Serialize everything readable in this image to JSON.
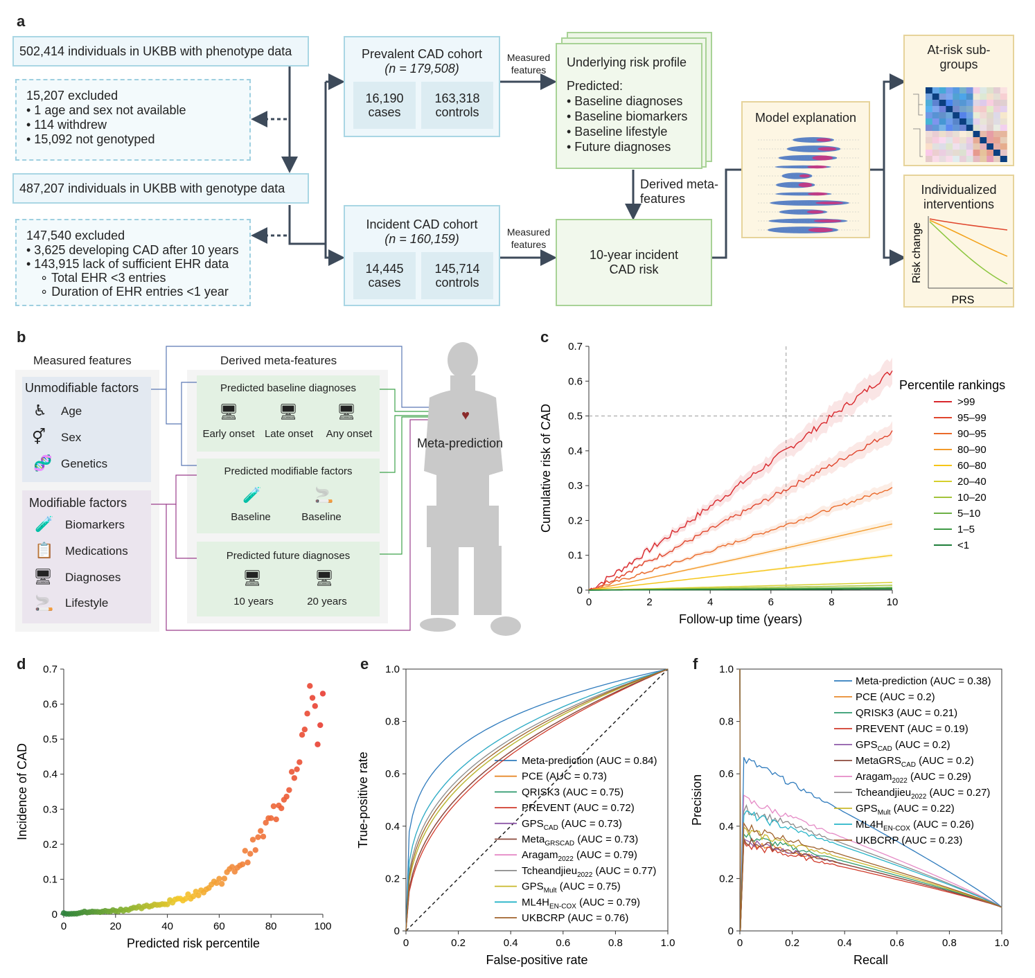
{
  "panels": {
    "a": "a",
    "b": "b",
    "c": "c",
    "d": "d",
    "e": "e",
    "f": "f"
  },
  "a": {
    "pheno": "502,414 individuals in UKBB with phenotype data",
    "excl1": {
      "title": "15,207 excluded",
      "items": [
        "• 1 age and sex not available",
        "• 114 withdrew",
        "• 15,092 not genotyped"
      ]
    },
    "geno": "487,207 individuals in UKBB with genotype data",
    "excl2": {
      "title": "147,540 excluded",
      "items": [
        "• 3,625 developing CAD after 10 years",
        "• 143,915 lack of sufficient EHR data",
        "∘ Total EHR <3 entries",
        "∘ Duration of EHR entries <1 year"
      ]
    },
    "prevalent": {
      "title": "Prevalent CAD cohort",
      "n": "(n = 179,508)",
      "cases_n": "16,190",
      "cases": "cases",
      "controls_n": "163,318",
      "controls": "controls"
    },
    "incident": {
      "title": "Incident CAD cohort",
      "n": "(n = 160,159)",
      "cases_n": "14,445",
      "cases": "cases",
      "controls_n": "145,714",
      "controls": "controls"
    },
    "measured1": "Measured features",
    "measured2": "Measured features",
    "risk": {
      "title": "Underlying risk profile",
      "predicted": "Predicted:",
      "items": [
        "• Baseline diagnoses",
        "• Baseline biomarkers",
        "• Baseline lifestyle",
        "• Future diagnoses"
      ]
    },
    "derived": "Derived meta-features",
    "incident_risk": "10-year incident CAD risk",
    "explain": "Model explanation",
    "atrisk": "At-risk sub-groups",
    "interv": "Individualized interventions",
    "interv_y": "Risk change",
    "interv_x": "PRS"
  },
  "b": {
    "measured": "Measured features",
    "derived": "Derived meta-features",
    "unmod": "Unmodifiable factors",
    "unmod_items": [
      "Age",
      "Sex",
      "Genetics"
    ],
    "mod": "Modifiable factors",
    "mod_items": [
      "Biomarkers",
      "Medications",
      "Diagnoses",
      "Lifestyle"
    ],
    "baseline_diag": "Predicted baseline diagnoses",
    "baseline_diag_items": [
      "Early onset",
      "Late onset",
      "Any onset"
    ],
    "mod_factors": "Predicted modifiable factors",
    "mod_factors_items": [
      "Baseline",
      "Baseline"
    ],
    "future": "Predicted future diagnoses",
    "future_items": [
      "10 years",
      "20 years"
    ],
    "meta": "Meta-prediction"
  },
  "chart_data": [
    {
      "id": "c",
      "type": "line",
      "xlabel": "Follow-up time (years)",
      "ylabel": "Cumulative risk of CAD",
      "xlim": [
        0,
        10
      ],
      "ylim": [
        0,
        0.7
      ],
      "xticks": [
        "0",
        "2",
        "4",
        "6",
        "8",
        "10"
      ],
      "yticks": [
        "0",
        "0.1",
        "0.2",
        "0.3",
        "0.4",
        "0.5",
        "0.6",
        "0.7"
      ],
      "legend_title": "Percentile rankings",
      "series": [
        {
          "name": ">99",
          "color": "#d8262b",
          "final": 0.63
        },
        {
          "name": "95–99",
          "color": "#e0452c",
          "final": 0.455
        },
        {
          "name": "90–95",
          "color": "#ea6a2a",
          "final": 0.295
        },
        {
          "name": "80–90",
          "color": "#f39a2a",
          "final": 0.19
        },
        {
          "name": "60–80",
          "color": "#f6c517",
          "final": 0.1
        },
        {
          "name": "20–40",
          "color": "#d6cf2c",
          "final": 0.022
        },
        {
          "name": "10–20",
          "color": "#a3c43a",
          "final": 0.014
        },
        {
          "name": "5–10",
          "color": "#6db046",
          "final": 0.008
        },
        {
          "name": "1–5",
          "color": "#3e9a45",
          "final": 0.005
        },
        {
          "name": "<1",
          "color": "#1f7e3a",
          "final": 0.003
        }
      ],
      "reference": {
        "x": 6.5,
        "y": 0.5
      }
    },
    {
      "id": "d",
      "type": "scatter",
      "xlabel": "Predicted risk percentile",
      "ylabel": "Incidence of CAD",
      "xlim": [
        0,
        100
      ],
      "ylim": [
        0,
        0.7
      ],
      "xticks": [
        "0",
        "20",
        "40",
        "60",
        "80",
        "100"
      ],
      "yticks": [
        "0",
        "0.1",
        "0.2",
        "0.3",
        "0.4",
        "0.5",
        "0.6",
        "0.7"
      ]
    },
    {
      "id": "e",
      "type": "line",
      "xlabel": "False-positive rate",
      "ylabel": "True-positive rate",
      "xlim": [
        0,
        1
      ],
      "ylim": [
        0,
        1
      ],
      "xticks": [
        "0",
        "0.2",
        "0.4",
        "0.6",
        "0.8",
        "1.0"
      ],
      "yticks": [
        "0",
        "0.2",
        "0.4",
        "0.6",
        "0.8",
        "1.0"
      ],
      "series": [
        {
          "name": "Meta-prediction",
          "sub": "",
          "suffix": " (AUC = 0.84)",
          "auc": 0.84,
          "color": "#2f7bbd"
        },
        {
          "name": "PCE",
          "sub": "",
          "suffix": " (AUC = 0.73)",
          "auc": 0.73,
          "color": "#e88a2c"
        },
        {
          "name": "QRISK3",
          "sub": "",
          "suffix": " (AUC = 0.75)",
          "auc": 0.75,
          "color": "#2e9a6e"
        },
        {
          "name": "PREVENT",
          "sub": "",
          "suffix": " (AUC = 0.72)",
          "auc": 0.72,
          "color": "#d03a2a"
        },
        {
          "name": "GPS",
          "sub": "CAD",
          "suffix": " (AUC = 0.73)",
          "auc": 0.73,
          "color": "#8e5aa8"
        },
        {
          "name": "Meta",
          "sub": "GRSCAD",
          "suffix": " (AUC = 0.73)",
          "auc": 0.73,
          "color": "#8b4a3c"
        },
        {
          "name": "Aragam",
          "sub": "2022",
          "suffix": " (AUC = 0.79)",
          "auc": 0.79,
          "color": "#e58ac6"
        },
        {
          "name": "Tcheandjieu",
          "sub": "2022",
          "suffix": " (AUC = 0.77)",
          "auc": 0.77,
          "color": "#8a8a8a"
        },
        {
          "name": "GPS",
          "sub": "Mult",
          "suffix": " (AUC = 0.75)",
          "auc": 0.75,
          "color": "#c9b82c"
        },
        {
          "name": "ML4H",
          "sub": "EN-COX",
          "suffix": " (AUC = 0.79)",
          "auc": 0.79,
          "color": "#27b4c8"
        },
        {
          "name": "UKBCRP",
          "sub": "",
          "suffix": " (AUC = 0.76)",
          "auc": 0.76,
          "color": "#a0622b"
        }
      ]
    },
    {
      "id": "f",
      "type": "line",
      "xlabel": "Recall",
      "ylabel": "Precision",
      "xlim": [
        0,
        1
      ],
      "ylim": [
        0,
        1
      ],
      "xticks": [
        "0",
        "0.2",
        "0.4",
        "0.6",
        "0.8",
        "1.0"
      ],
      "yticks": [
        "0",
        "0.2",
        "0.4",
        "0.6",
        "0.8",
        "1.0"
      ],
      "series": [
        {
          "name": "Meta-prediction",
          "sub": "",
          "suffix": " (AUC = 0.38)",
          "auc": 0.38,
          "color": "#2f7bbd"
        },
        {
          "name": "PCE",
          "sub": "",
          "suffix": " (AUC = 0.2)",
          "auc": 0.2,
          "color": "#e88a2c"
        },
        {
          "name": "QRISK3",
          "sub": "",
          "suffix": " (AUC = 0.21)",
          "auc": 0.21,
          "color": "#2e9a6e"
        },
        {
          "name": "PREVENT",
          "sub": "",
          "suffix": " (AUC = 0.19)",
          "auc": 0.19,
          "color": "#d03a2a"
        },
        {
          "name": "GPS",
          "sub": "CAD",
          "suffix": " (AUC = 0.2)",
          "auc": 0.2,
          "color": "#8e5aa8"
        },
        {
          "name": "MetaGRS",
          "sub": "CAD",
          "suffix": " (AUC = 0.2)",
          "auc": 0.2,
          "color": "#8b4a3c"
        },
        {
          "name": "Aragam",
          "sub": "2022",
          "suffix": " (AUC = 0.29)",
          "auc": 0.29,
          "color": "#e58ac6"
        },
        {
          "name": "Tcheandjieu",
          "sub": "2022",
          "suffix": " (AUC = 0.27)",
          "auc": 0.27,
          "color": "#8a8a8a"
        },
        {
          "name": "GPS",
          "sub": "Mult",
          "suffix": " (AUC = 0.22)",
          "auc": 0.22,
          "color": "#c9b82c"
        },
        {
          "name": "ML4H",
          "sub": "EN-COX",
          "suffix": " (AUC = 0.26)",
          "auc": 0.26,
          "color": "#27b4c8"
        },
        {
          "name": "UKBCRP",
          "sub": "",
          "suffix": " (AUC = 0.23)",
          "auc": 0.23,
          "color": "#a0622b"
        }
      ]
    }
  ]
}
